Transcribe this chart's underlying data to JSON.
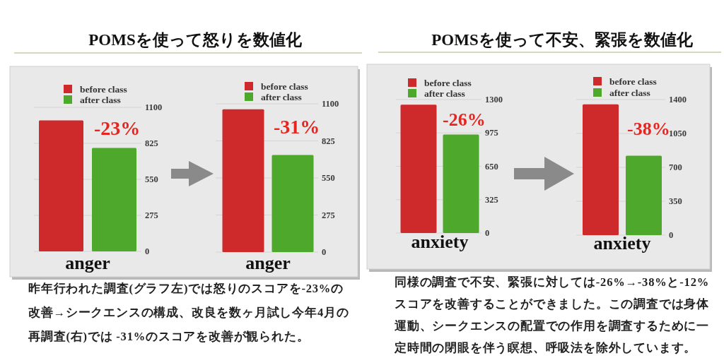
{
  "chart_data": [
    {
      "type": "bar",
      "title": "POMSを使って怒りを数値化",
      "categories": [
        "anger"
      ],
      "series": [
        {
          "name": "before class",
          "color": "#cf2a2b",
          "values": [
            1000
          ],
          "axis": "y2"
        },
        {
          "name": "after class",
          "color": "#4ea82c",
          "values": [
            790
          ],
          "axis": "y2"
        }
      ],
      "y2lim": [
        0,
        1100
      ],
      "y2ticks": [
        0,
        275,
        550,
        825,
        1100
      ],
      "grid": "y",
      "legend": "top",
      "annotations": [
        "-23%",
        "昨年行われた調査(グラフ左)では怒りのスコアを-23%の改善→シークエンスの構成、改良を数ヶ月試し今年4月の再調査(右)では -31%のスコアを改善が観られた。"
      ]
    },
    {
      "type": "bar",
      "categories": [
        "anger"
      ],
      "series": [
        {
          "name": "before class",
          "color": "#cf2a2b",
          "values": [
            1060
          ],
          "axis": "y2"
        },
        {
          "name": "after class",
          "color": "#4ea82c",
          "values": [
            720
          ],
          "axis": "y2"
        }
      ],
      "y2lim": [
        0,
        1100
      ],
      "y2ticks": [
        0,
        275,
        550,
        825,
        1100
      ],
      "grid": "y",
      "legend": "top",
      "annotations": [
        "-31%"
      ]
    },
    {
      "type": "bar",
      "title": "POMSを使って不安、緊張を数値化",
      "categories": [
        "anxiety"
      ],
      "series": [
        {
          "name": "before class",
          "color": "#cf2a2b",
          "values": [
            1250
          ],
          "axis": "y2"
        },
        {
          "name": "after class",
          "color": "#4ea82c",
          "values": [
            960
          ],
          "axis": "y2"
        }
      ],
      "y2lim": [
        0,
        1300
      ],
      "y2ticks": [
        0,
        325,
        650,
        975,
        1300
      ],
      "grid": "y",
      "legend": "top",
      "annotations": [
        "-26%",
        "同様の調査で不安、緊張に対しては-26%→-38%と-12%スコアを改善することができました。この調査では身体運動、シークエンスの配置での作用を調査するために一定時間の閉眼を伴う瞑想、呼吸法を除外しています。"
      ]
    },
    {
      "type": "bar",
      "categories": [
        "anxiety"
      ],
      "series": [
        {
          "name": "before class",
          "color": "#cf2a2b",
          "values": [
            1350
          ],
          "axis": "y2"
        },
        {
          "name": "after class",
          "color": "#4ea82c",
          "values": [
            820
          ],
          "axis": "y2"
        }
      ],
      "y2lim": [
        0,
        1400
      ],
      "y2ticks": [
        0,
        350,
        700,
        1050,
        1400
      ],
      "grid": "y",
      "legend": "top",
      "annotations": [
        "-38%"
      ]
    }
  ]
}
